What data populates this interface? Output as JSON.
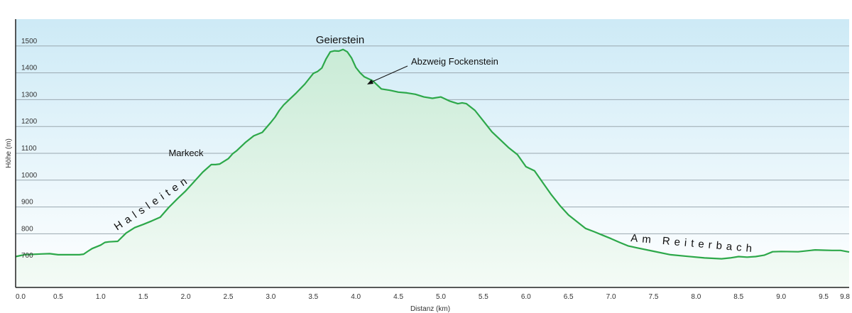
{
  "chart_data": {
    "type": "area",
    "xlabel": "Distanz  (km)",
    "ylabel": "Höhe (m)",
    "xlim": [
      0,
      9.8
    ],
    "ylim": [
      600,
      1600
    ],
    "x_ticks": [
      "0.0",
      "0.5",
      "1.0",
      "1.5",
      "2.0",
      "2.5",
      "3.0",
      "3.5",
      "4.0",
      "4.5",
      "5.0",
      "5.5",
      "6.0",
      "6.5",
      "7.0",
      "7.5",
      "8.0",
      "8.5",
      "9.0",
      "9.5",
      "9.8"
    ],
    "y_ticks": [
      "700",
      "800",
      "900",
      "1000",
      "1100",
      "1200",
      "1300",
      "1400",
      "1500"
    ],
    "grid": true,
    "colors": {
      "line": "#2da84a",
      "fill_top": "#c9ebd6",
      "bg_top": "#cdeaf6",
      "bg_bottom": "#ffffff"
    },
    "series": [
      {
        "x": [
          0.0,
          0.1,
          0.3,
          0.4,
          0.5,
          0.6,
          0.75,
          0.8,
          0.85,
          0.9,
          1.0,
          1.05,
          1.1,
          1.2,
          1.3,
          1.4,
          1.5,
          1.6,
          1.7,
          1.8,
          1.9,
          2.0,
          2.1,
          2.2,
          2.3,
          2.35,
          2.4,
          2.5,
          2.55,
          2.6,
          2.7,
          2.8,
          2.9,
          3.0,
          3.05,
          3.1,
          3.15,
          3.2,
          3.3,
          3.4,
          3.5,
          3.55,
          3.6,
          3.65,
          3.7,
          3.75,
          3.8,
          3.85,
          3.9,
          3.95,
          4.0,
          4.05,
          4.1,
          4.2,
          4.3,
          4.4,
          4.5,
          4.6,
          4.7,
          4.8,
          4.9,
          5.0,
          5.1,
          5.2,
          5.25,
          5.3,
          5.4,
          5.5,
          5.6,
          5.7,
          5.8,
          5.9,
          6.0,
          6.1,
          6.2,
          6.3,
          6.4,
          6.5,
          6.6,
          6.7,
          6.8,
          6.9,
          7.0,
          7.1,
          7.2,
          7.3,
          7.5,
          7.7,
          7.9,
          8.1,
          8.3,
          8.4,
          8.5,
          8.6,
          8.7,
          8.8,
          8.9,
          9.0,
          9.2,
          9.4,
          9.5,
          9.6,
          9.7,
          9.8
        ],
        "y": [
          715,
          722,
          725,
          726,
          722,
          722,
          722,
          724,
          735,
          745,
          758,
          768,
          770,
          772,
          803,
          823,
          835,
          848,
          862,
          898,
          930,
          960,
          995,
          1030,
          1058,
          1058,
          1060,
          1080,
          1098,
          1110,
          1140,
          1165,
          1178,
          1215,
          1235,
          1260,
          1280,
          1295,
          1325,
          1358,
          1398,
          1405,
          1418,
          1452,
          1478,
          1482,
          1481,
          1487,
          1478,
          1455,
          1420,
          1400,
          1385,
          1370,
          1340,
          1335,
          1328,
          1325,
          1320,
          1310,
          1305,
          1310,
          1295,
          1285,
          1288,
          1285,
          1260,
          1220,
          1180,
          1150,
          1120,
          1095,
          1050,
          1035,
          990,
          945,
          905,
          870,
          845,
          820,
          808,
          795,
          782,
          768,
          755,
          748,
          735,
          722,
          716,
          710,
          707,
          710,
          715,
          713,
          715,
          720,
          733,
          734,
          733,
          740,
          739,
          738,
          738,
          732
        ]
      }
    ],
    "annotations": {
      "geierstein": "Geierstein",
      "abzweig": "Abzweig Fockenstein",
      "markeck": "Markeck",
      "halsleiten": "Halsleiten",
      "reiterbach": "Am Reiterbach"
    }
  }
}
